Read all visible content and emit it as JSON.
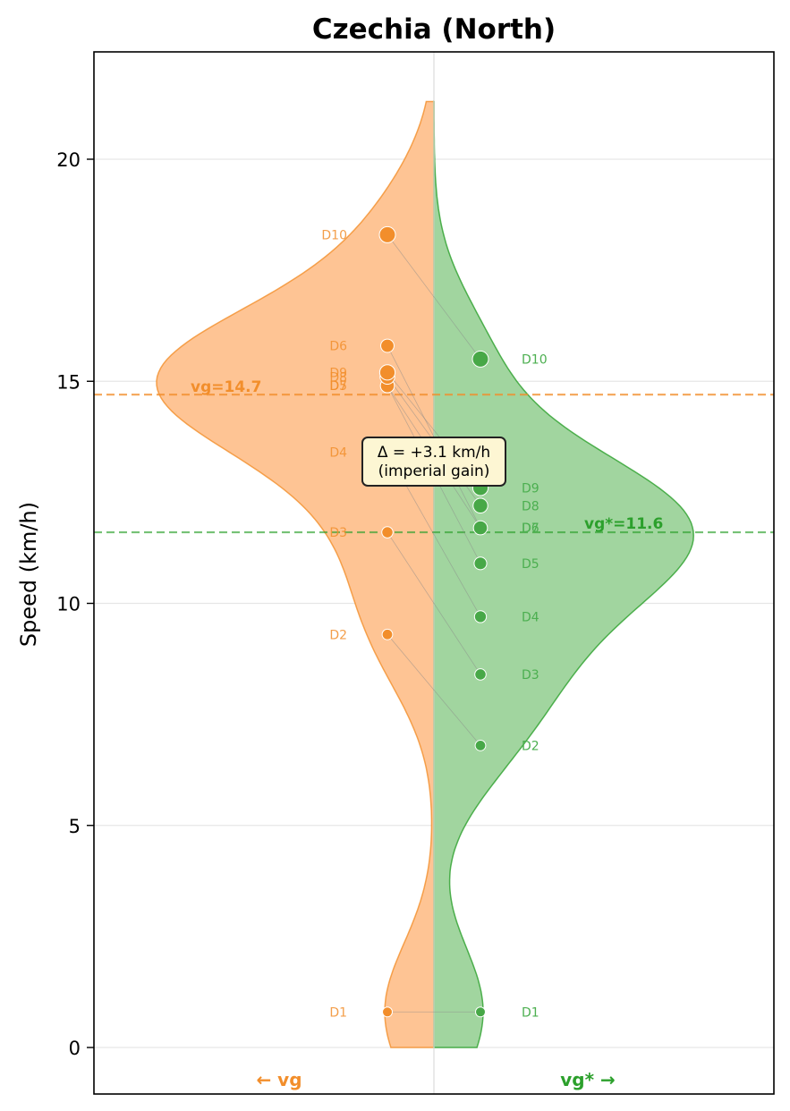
{
  "chart_data": {
    "type": "violin",
    "title": "Czechia (North)",
    "ylabel": "Speed (km/h)",
    "xlabel": "",
    "ylim": [
      -1.05,
      22.4
    ],
    "yticks": [
      "0",
      "5",
      "10",
      "15",
      "20"
    ],
    "ytick_values": [
      0,
      5,
      10,
      15,
      20
    ],
    "grid": true,
    "left": {
      "name": "vg",
      "side_label": "← vg",
      "color": "#f28e2b",
      "fill": "#fec494",
      "mean": 14.7,
      "mean_label": "vg=14.7",
      "points": [
        {
          "label": "D1",
          "value": 0.8
        },
        {
          "label": "D2",
          "value": 9.3
        },
        {
          "label": "D3",
          "value": 11.6
        },
        {
          "label": "D4",
          "value": 13.4
        },
        {
          "label": "D5",
          "value": 14.9
        },
        {
          "label": "D6",
          "value": 15.8
        },
        {
          "label": "D7",
          "value": 14.9
        },
        {
          "label": "D8",
          "value": 15.1
        },
        {
          "label": "D9",
          "value": 15.2
        },
        {
          "label": "D10",
          "value": 18.3
        }
      ]
    },
    "right": {
      "name": "vg*",
      "side_label": "vg* →",
      "color": "#2ca02c",
      "fill": "#a1d59f",
      "mean": 11.6,
      "mean_label": "vg*=11.6",
      "points": [
        {
          "label": "D1",
          "value": 0.8
        },
        {
          "label": "D2",
          "value": 6.8
        },
        {
          "label": "D3",
          "value": 8.4
        },
        {
          "label": "D4",
          "value": 9.7
        },
        {
          "label": "D5",
          "value": 10.9
        },
        {
          "label": "D6",
          "value": 11.7
        },
        {
          "label": "D7",
          "value": 11.7
        },
        {
          "label": "D8",
          "value": 12.2
        },
        {
          "label": "D9",
          "value": 12.6
        },
        {
          "label": "D10",
          "value": 15.5
        }
      ]
    },
    "annotation": {
      "line1": "Δ = +3.1 km/h",
      "line2": "(imperial gain)"
    }
  }
}
